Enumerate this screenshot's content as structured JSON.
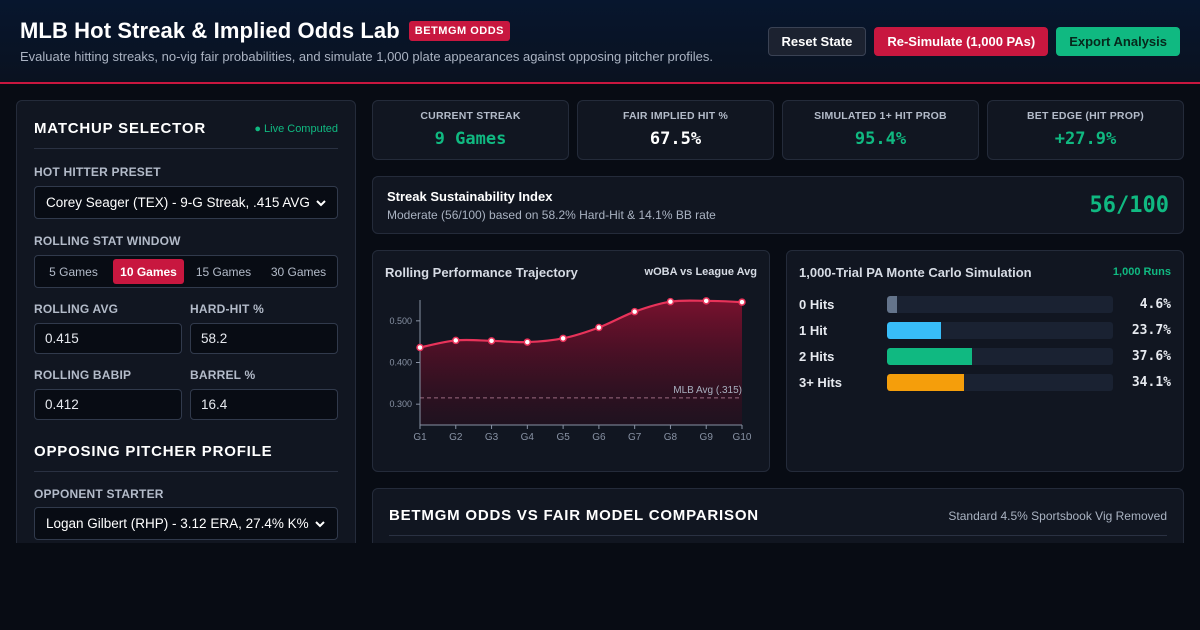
{
  "header": {
    "title": "MLB Hot Streak & Implied Odds Lab",
    "badge": "BETMGM ODDS",
    "subtitle": "Evaluate hitting streaks, no-vig fair probabilities, and simulate 1,000 plate appearances against opposing pitcher profiles.",
    "buttons": {
      "reset": "Reset State",
      "simulate": "Re-Simulate (1,000 PAs)",
      "export": "Export Analysis"
    }
  },
  "matchup": {
    "title": "MATCHUP SELECTOR",
    "live": "● Live Computed",
    "preset_label": "HOT HITTER PRESET",
    "preset_value": "Corey Seager (TEX) - 9-G Streak, .415 AVG",
    "window_label": "ROLLING STAT WINDOW",
    "windows": [
      {
        "label": "5 Games",
        "active": false
      },
      {
        "label": "10 Games",
        "active": true
      },
      {
        "label": "15 Games",
        "active": false
      },
      {
        "label": "30 Games",
        "active": false
      }
    ],
    "fields": {
      "avg_label": "ROLLING AVG",
      "avg_value": "0.415",
      "hardhit_label": "HARD-HIT %",
      "hardhit_value": "58.2",
      "babip_label": "ROLLING BABIP",
      "babip_value": "0.412",
      "barrel_label": "BARREL %",
      "barrel_value": "16.4"
    }
  },
  "pitcher": {
    "title": "OPPOSING PITCHER PROFILE",
    "starter_label": "OPPONENT STARTER",
    "starter_value": "Logan Gilbert (RHP) - 3.12 ERA, 27.4% K%"
  },
  "stats": [
    {
      "label": "CURRENT STREAK",
      "value": "9 Games",
      "color": "#10b981"
    },
    {
      "label": "FAIR IMPLIED HIT %",
      "value": "67.5%",
      "color": "#ffffff"
    },
    {
      "label": "SIMULATED 1+ HIT PROB",
      "value": "95.4%",
      "color": "#10b981"
    },
    {
      "label": "BET EDGE (HIT PROP)",
      "value": "+27.9%",
      "color": "#10b981"
    }
  ],
  "sustainability": {
    "title": "Streak Sustainability Index",
    "description": "Moderate (56/100) based on 58.2% Hard-Hit & 14.1% BB rate",
    "score": "56/100"
  },
  "trajectory": {
    "title": "Rolling Performance Trajectory",
    "legend": "wOBA vs League Avg"
  },
  "chart_data": {
    "type": "area",
    "title": "Rolling Performance Trajectory",
    "categories": [
      "G1",
      "G2",
      "G3",
      "G4",
      "G5",
      "G6",
      "G7",
      "G8",
      "G9",
      "G10"
    ],
    "series": [
      {
        "name": "wOBA",
        "values": [
          0.436,
          0.453,
          0.452,
          0.449,
          0.458,
          0.484,
          0.522,
          0.546,
          0.548,
          0.545
        ]
      }
    ],
    "reference_line": {
      "label": "MLB Avg (.315)",
      "value": 0.315
    },
    "yticks": [
      "0.500",
      "0.400",
      "0.300"
    ],
    "ylim": [
      0.25,
      0.55
    ],
    "grid": false,
    "line_color": "#e8335a"
  },
  "simulation": {
    "title": "1,000-Trial PA Monte Carlo Simulation",
    "runs": "1,000 Runs",
    "rows": [
      {
        "label": "0 Hits",
        "pct": "4.6%",
        "value": 4.6,
        "color": "#64748b"
      },
      {
        "label": "1 Hit",
        "pct": "23.7%",
        "value": 23.7,
        "color": "#38bdf8"
      },
      {
        "label": "2 Hits",
        "pct": "37.6%",
        "value": 37.6,
        "color": "#10b981"
      },
      {
        "label": "3+ Hits",
        "pct": "34.1%",
        "value": 34.1,
        "color": "#f59e0b"
      }
    ]
  },
  "odds": {
    "title": "BETMGM ODDS VS FAIR MODEL COMPARISON",
    "note": "Standard 4.5% Sportsbook Vig Removed"
  }
}
